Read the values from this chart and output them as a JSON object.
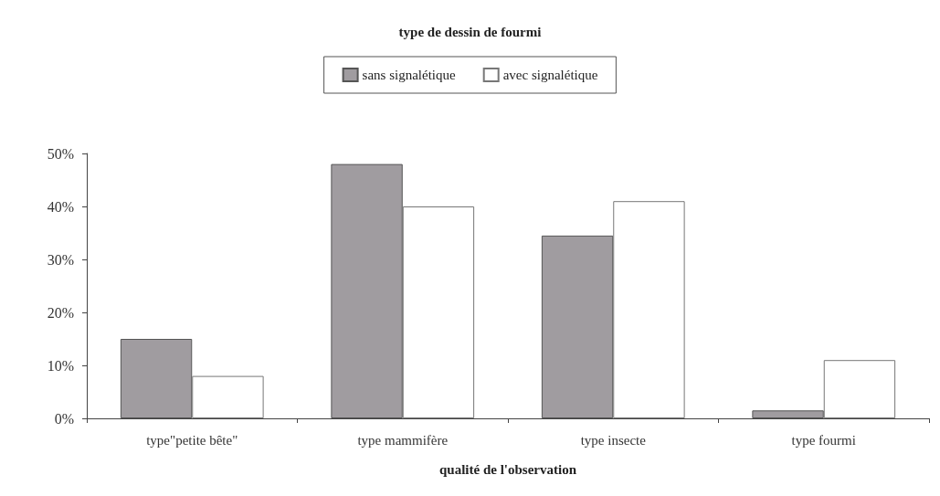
{
  "chart_data": {
    "type": "bar",
    "legend_title": "type de dessin de fourmi",
    "xlabel": "qualité de l'observation",
    "categories": [
      "type\"petite bête\"",
      "type mammifère",
      "type insecte",
      "type fourmi"
    ],
    "series": [
      {
        "name": "sans signalétique",
        "color": "#a09ca0",
        "values": [
          15,
          48,
          34.5,
          1.5
        ]
      },
      {
        "name": "avec signalétique",
        "color": "#ffffff",
        "values": [
          8,
          40,
          41,
          11
        ]
      }
    ],
    "ylim": [
      0,
      50
    ],
    "yticks": [
      {
        "value": 0,
        "label": "0%"
      },
      {
        "value": 10,
        "label": "10%"
      },
      {
        "value": 20,
        "label": "20%"
      },
      {
        "value": 30,
        "label": "30%"
      },
      {
        "value": 40,
        "label": "40%"
      },
      {
        "value": 50,
        "label": "50%"
      }
    ],
    "grid": false,
    "legend": "top"
  }
}
